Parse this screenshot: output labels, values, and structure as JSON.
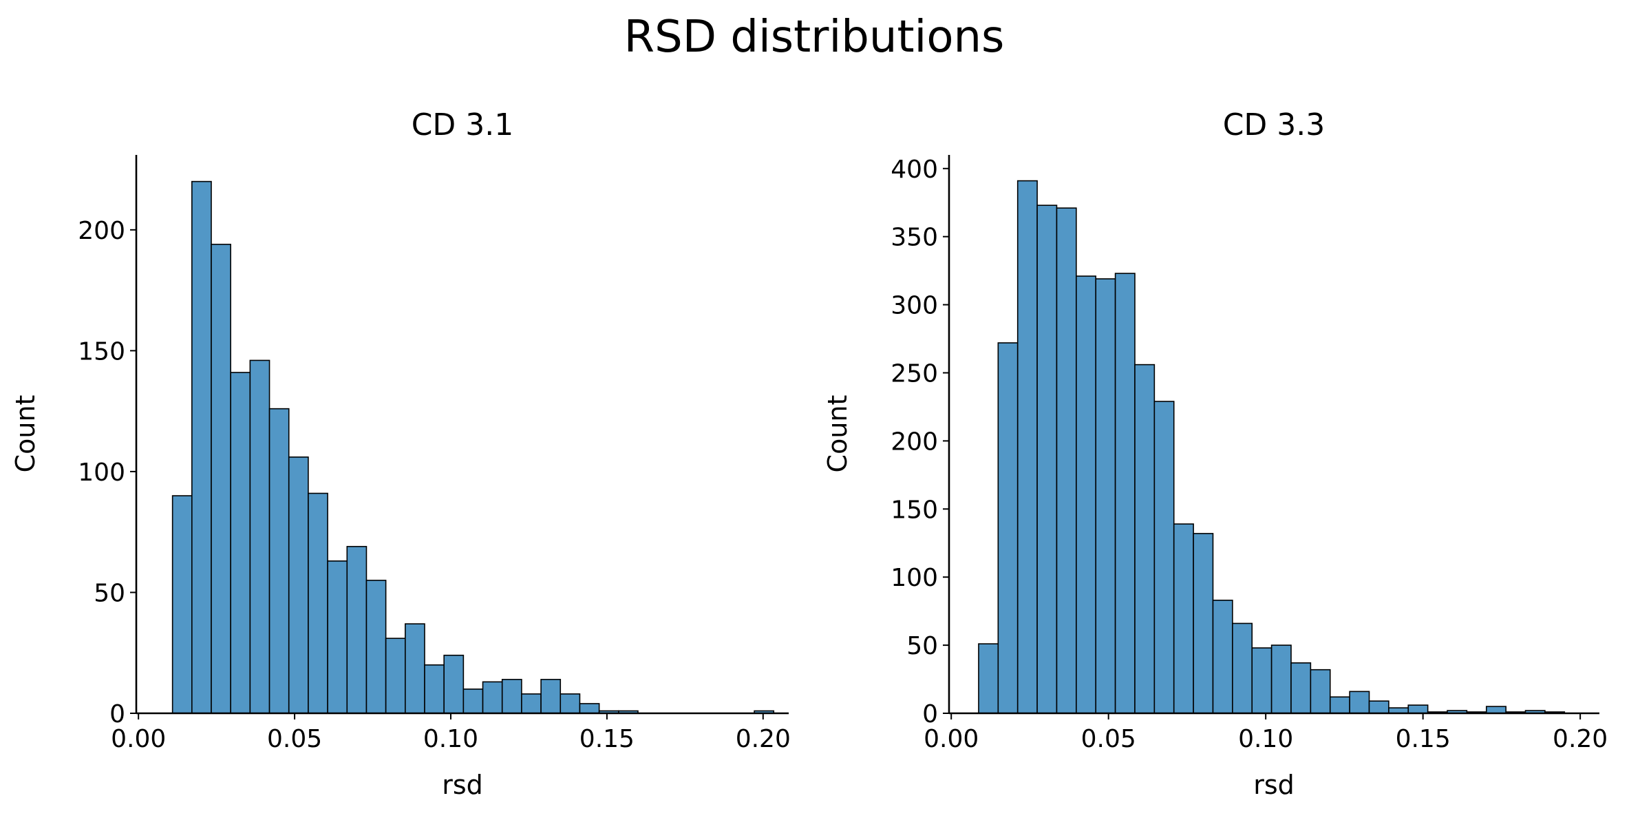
{
  "figure": {
    "title": "RSD distributions"
  },
  "chart_data": [
    {
      "type": "histogram",
      "title": "CD 3.1",
      "xlabel": "rsd",
      "ylabel": "Count",
      "xlim": [
        -0.0007,
        0.2082
      ],
      "ylim": [
        0,
        231
      ],
      "xticks": [
        {
          "value": 0.0,
          "label": "0.00"
        },
        {
          "value": 0.05,
          "label": "0.05"
        },
        {
          "value": 0.1,
          "label": "0.10"
        },
        {
          "value": 0.15,
          "label": "0.15"
        },
        {
          "value": 0.2,
          "label": "0.20"
        }
      ],
      "yticks": [
        {
          "value": 0,
          "label": "0"
        },
        {
          "value": 50,
          "label": "50"
        },
        {
          "value": 100,
          "label": "100"
        },
        {
          "value": 150,
          "label": "150"
        },
        {
          "value": 200,
          "label": "200"
        }
      ],
      "bin_start": 0.0109,
      "bin_width": 0.00621,
      "counts": [
        90,
        220,
        194,
        141,
        146,
        126,
        106,
        91,
        63,
        69,
        55,
        31,
        37,
        20,
        24,
        10,
        13,
        14,
        8,
        14,
        8,
        4,
        1,
        1,
        0,
        0,
        0,
        0,
        0,
        0,
        1
      ],
      "bar_color": "#5297c6",
      "edge_color": "#000000",
      "grid": false
    },
    {
      "type": "histogram",
      "title": "CD 3.3",
      "xlabel": "rsd",
      "ylabel": "Count",
      "xlim": [
        -0.0007,
        0.2061
      ],
      "ylim": [
        0,
        410
      ],
      "xticks": [
        {
          "value": 0.0,
          "label": "0.00"
        },
        {
          "value": 0.05,
          "label": "0.05"
        },
        {
          "value": 0.1,
          "label": "0.10"
        },
        {
          "value": 0.15,
          "label": "0.15"
        },
        {
          "value": 0.2,
          "label": "0.20"
        }
      ],
      "yticks": [
        {
          "value": 0,
          "label": "0"
        },
        {
          "value": 50,
          "label": "50"
        },
        {
          "value": 100,
          "label": "100"
        },
        {
          "value": 150,
          "label": "150"
        },
        {
          "value": 200,
          "label": "200"
        },
        {
          "value": 250,
          "label": "250"
        },
        {
          "value": 300,
          "label": "300"
        },
        {
          "value": 350,
          "label": "350"
        },
        {
          "value": 400,
          "label": "400"
        }
      ],
      "bin_start": 0.0087,
      "bin_width": 0.00621,
      "counts": [
        51,
        272,
        391,
        373,
        371,
        321,
        319,
        323,
        256,
        229,
        139,
        132,
        83,
        66,
        48,
        50,
        37,
        32,
        12,
        16,
        9,
        4,
        6,
        1,
        2,
        1,
        5,
        1,
        2,
        1
      ],
      "bar_color": "#5297c6",
      "edge_color": "#000000",
      "grid": false
    }
  ]
}
